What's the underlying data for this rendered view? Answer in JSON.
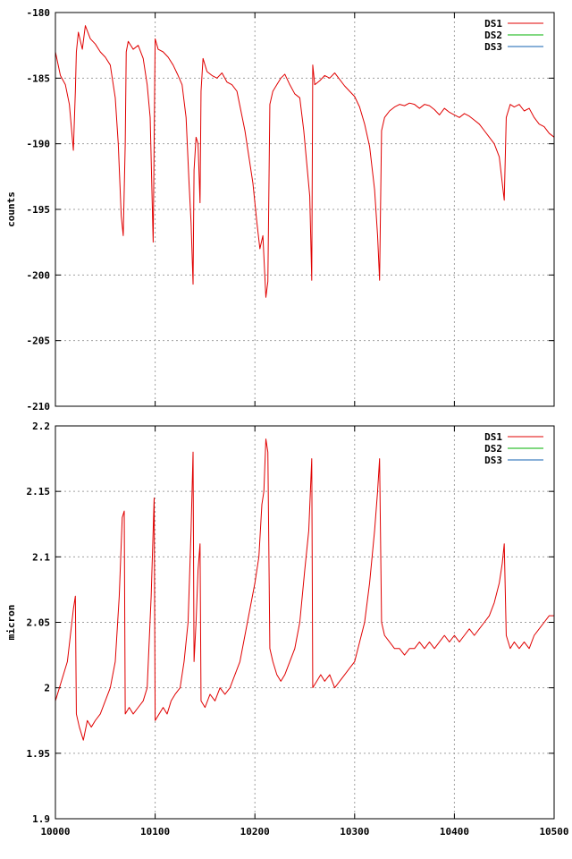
{
  "chart_data": [
    {
      "type": "line",
      "title": "",
      "xlabel": "",
      "ylabel": "counts",
      "xlim": [
        10000,
        10500
      ],
      "ylim": [
        -210,
        -180
      ],
      "xticks": [
        10000,
        10100,
        10200,
        10300,
        10400,
        10500
      ],
      "yticks": [
        -210,
        -205,
        -200,
        -195,
        -190,
        -185,
        -180
      ],
      "show_xtick_labels": false,
      "grid": true,
      "legend_position": "top-right",
      "series": [
        {
          "name": "DS1",
          "color": "#e00000",
          "points": [
            [
              10000,
              -183.0
            ],
            [
              10005,
              -184.8
            ],
            [
              10010,
              -185.5
            ],
            [
              10014,
              -187.0
            ],
            [
              10018,
              -190.5
            ],
            [
              10020,
              -186.0
            ],
            [
              10021,
              -183.0
            ],
            [
              10023,
              -181.5
            ],
            [
              10027,
              -182.8
            ],
            [
              10030,
              -181.0
            ],
            [
              10035,
              -182.0
            ],
            [
              10040,
              -182.4
            ],
            [
              10045,
              -183.0
            ],
            [
              10050,
              -183.4
            ],
            [
              10055,
              -184.0
            ],
            [
              10060,
              -186.5
            ],
            [
              10063,
              -190.0
            ],
            [
              10066,
              -195.5
            ],
            [
              10068,
              -197.0
            ],
            [
              10070,
              -190.0
            ],
            [
              10071,
              -183.0
            ],
            [
              10073,
              -182.2
            ],
            [
              10078,
              -182.8
            ],
            [
              10083,
              -182.5
            ],
            [
              10088,
              -183.5
            ],
            [
              10092,
              -185.5
            ],
            [
              10095,
              -188.0
            ],
            [
              10098,
              -197.5
            ],
            [
              10100,
              -182.0
            ],
            [
              10103,
              -182.8
            ],
            [
              10108,
              -183.0
            ],
            [
              10113,
              -183.4
            ],
            [
              10118,
              -184.0
            ],
            [
              10123,
              -184.8
            ],
            [
              10127,
              -185.5
            ],
            [
              10131,
              -188.0
            ],
            [
              10134,
              -193.0
            ],
            [
              10136,
              -196.0
            ],
            [
              10138,
              -200.7
            ],
            [
              10139,
              -192.0
            ],
            [
              10141,
              -189.5
            ],
            [
              10143,
              -190.0
            ],
            [
              10145,
              -194.5
            ],
            [
              10146,
              -186.0
            ],
            [
              10148,
              -183.5
            ],
            [
              10152,
              -184.5
            ],
            [
              10157,
              -184.8
            ],
            [
              10162,
              -185.0
            ],
            [
              10167,
              -184.6
            ],
            [
              10172,
              -185.3
            ],
            [
              10177,
              -185.5
            ],
            [
              10182,
              -186.0
            ],
            [
              10186,
              -187.5
            ],
            [
              10190,
              -189.0
            ],
            [
              10194,
              -191.0
            ],
            [
              10198,
              -193.0
            ],
            [
              10202,
              -196.0
            ],
            [
              10205,
              -198.0
            ],
            [
              10208,
              -197.0
            ],
            [
              10211,
              -201.7
            ],
            [
              10213,
              -200.5
            ],
            [
              10215,
              -187.0
            ],
            [
              10218,
              -186.0
            ],
            [
              10222,
              -185.5
            ],
            [
              10226,
              -185.0
            ],
            [
              10230,
              -184.7
            ],
            [
              10235,
              -185.5
            ],
            [
              10240,
              -186.2
            ],
            [
              10245,
              -186.5
            ],
            [
              10249,
              -189.0
            ],
            [
              10252,
              -191.5
            ],
            [
              10255,
              -194.0
            ],
            [
              10257,
              -200.4
            ],
            [
              10258,
              -184.0
            ],
            [
              10260,
              -185.5
            ],
            [
              10265,
              -185.2
            ],
            [
              10270,
              -184.8
            ],
            [
              10275,
              -185.0
            ],
            [
              10280,
              -184.6
            ],
            [
              10285,
              -185.1
            ],
            [
              10290,
              -185.6
            ],
            [
              10295,
              -186.0
            ],
            [
              10300,
              -186.4
            ],
            [
              10305,
              -187.2
            ],
            [
              10310,
              -188.5
            ],
            [
              10315,
              -190.2
            ],
            [
              10320,
              -193.5
            ],
            [
              10323,
              -197.0
            ],
            [
              10325,
              -200.4
            ],
            [
              10327,
              -189.0
            ],
            [
              10330,
              -188.0
            ],
            [
              10335,
              -187.5
            ],
            [
              10340,
              -187.2
            ],
            [
              10345,
              -187.0
            ],
            [
              10350,
              -187.1
            ],
            [
              10355,
              -186.9
            ],
            [
              10360,
              -187.0
            ],
            [
              10365,
              -187.3
            ],
            [
              10370,
              -187.0
            ],
            [
              10375,
              -187.1
            ],
            [
              10380,
              -187.4
            ],
            [
              10385,
              -187.8
            ],
            [
              10390,
              -187.3
            ],
            [
              10395,
              -187.6
            ],
            [
              10400,
              -187.8
            ],
            [
              10405,
              -188.0
            ],
            [
              10410,
              -187.7
            ],
            [
              10415,
              -187.9
            ],
            [
              10420,
              -188.2
            ],
            [
              10425,
              -188.5
            ],
            [
              10430,
              -189.0
            ],
            [
              10435,
              -189.5
            ],
            [
              10440,
              -190.0
            ],
            [
              10445,
              -191.0
            ],
            [
              10448,
              -193.0
            ],
            [
              10450,
              -194.3
            ],
            [
              10452,
              -188.0
            ],
            [
              10456,
              -187.0
            ],
            [
              10460,
              -187.2
            ],
            [
              10465,
              -187.0
            ],
            [
              10470,
              -187.5
            ],
            [
              10475,
              -187.3
            ],
            [
              10480,
              -188.0
            ],
            [
              10485,
              -188.5
            ],
            [
              10490,
              -188.7
            ],
            [
              10495,
              -189.2
            ],
            [
              10500,
              -189.5
            ]
          ]
        },
        {
          "name": "DS2",
          "color": "#00b000",
          "points": []
        },
        {
          "name": "DS3",
          "color": "#1060b0",
          "points": []
        }
      ]
    },
    {
      "type": "line",
      "title": "",
      "xlabel": "",
      "ylabel": "micron",
      "xlim": [
        10000,
        10500
      ],
      "ylim": [
        1.9,
        2.2
      ],
      "xticks": [
        10000,
        10100,
        10200,
        10300,
        10400,
        10500
      ],
      "yticks": [
        1.9,
        1.95,
        2.0,
        2.05,
        2.1,
        2.15,
        2.2
      ],
      "show_xtick_labels": true,
      "grid": true,
      "legend_position": "top-right",
      "series": [
        {
          "name": "DS1",
          "color": "#e00000",
          "points": [
            [
              10000,
              1.99
            ],
            [
              10004,
              2.0
            ],
            [
              10008,
              2.01
            ],
            [
              10012,
              2.02
            ],
            [
              10015,
              2.04
            ],
            [
              10018,
              2.06
            ],
            [
              10020,
              2.07
            ],
            [
              10021,
              1.98
            ],
            [
              10024,
              1.97
            ],
            [
              10028,
              1.96
            ],
            [
              10032,
              1.975
            ],
            [
              10036,
              1.97
            ],
            [
              10040,
              1.975
            ],
            [
              10045,
              1.98
            ],
            [
              10050,
              1.99
            ],
            [
              10055,
              2.0
            ],
            [
              10060,
              2.02
            ],
            [
              10064,
              2.07
            ],
            [
              10067,
              2.13
            ],
            [
              10069,
              2.135
            ],
            [
              10070,
              1.98
            ],
            [
              10074,
              1.985
            ],
            [
              10078,
              1.98
            ],
            [
              10083,
              1.985
            ],
            [
              10088,
              1.99
            ],
            [
              10092,
              2.0
            ],
            [
              10096,
              2.07
            ],
            [
              10099,
              2.145
            ],
            [
              10100,
              1.975
            ],
            [
              10104,
              1.98
            ],
            [
              10108,
              1.985
            ],
            [
              10112,
              1.98
            ],
            [
              10116,
              1.99
            ],
            [
              10120,
              1.995
            ],
            [
              10125,
              2.0
            ],
            [
              10129,
              2.02
            ],
            [
              10133,
              2.05
            ],
            [
              10136,
              2.12
            ],
            [
              10138,
              2.18
            ],
            [
              10139,
              2.02
            ],
            [
              10141,
              2.05
            ],
            [
              10143,
              2.09
            ],
            [
              10145,
              2.11
            ],
            [
              10146,
              1.99
            ],
            [
              10150,
              1.985
            ],
            [
              10155,
              1.995
            ],
            [
              10160,
              1.99
            ],
            [
              10165,
              2.0
            ],
            [
              10170,
              1.995
            ],
            [
              10175,
              2.0
            ],
            [
              10180,
              2.01
            ],
            [
              10185,
              2.02
            ],
            [
              10190,
              2.04
            ],
            [
              10195,
              2.06
            ],
            [
              10200,
              2.08
            ],
            [
              10204,
              2.1
            ],
            [
              10207,
              2.14
            ],
            [
              10209,
              2.15
            ],
            [
              10211,
              2.19
            ],
            [
              10213,
              2.18
            ],
            [
              10215,
              2.03
            ],
            [
              10218,
              2.02
            ],
            [
              10222,
              2.01
            ],
            [
              10226,
              2.005
            ],
            [
              10230,
              2.01
            ],
            [
              10235,
              2.02
            ],
            [
              10240,
              2.03
            ],
            [
              10245,
              2.05
            ],
            [
              10250,
              2.09
            ],
            [
              10254,
              2.12
            ],
            [
              10257,
              2.175
            ],
            [
              10258,
              2.0
            ],
            [
              10262,
              2.005
            ],
            [
              10266,
              2.01
            ],
            [
              10270,
              2.005
            ],
            [
              10275,
              2.01
            ],
            [
              10280,
              2.0
            ],
            [
              10285,
              2.005
            ],
            [
              10290,
              2.01
            ],
            [
              10295,
              2.015
            ],
            [
              10300,
              2.02
            ],
            [
              10305,
              2.035
            ],
            [
              10310,
              2.05
            ],
            [
              10315,
              2.08
            ],
            [
              10320,
              2.12
            ],
            [
              10323,
              2.15
            ],
            [
              10325,
              2.175
            ],
            [
              10327,
              2.05
            ],
            [
              10330,
              2.04
            ],
            [
              10335,
              2.035
            ],
            [
              10340,
              2.03
            ],
            [
              10345,
              2.03
            ],
            [
              10350,
              2.025
            ],
            [
              10355,
              2.03
            ],
            [
              10360,
              2.03
            ],
            [
              10365,
              2.035
            ],
            [
              10370,
              2.03
            ],
            [
              10375,
              2.035
            ],
            [
              10380,
              2.03
            ],
            [
              10385,
              2.035
            ],
            [
              10390,
              2.04
            ],
            [
              10395,
              2.035
            ],
            [
              10400,
              2.04
            ],
            [
              10405,
              2.035
            ],
            [
              10410,
              2.04
            ],
            [
              10415,
              2.045
            ],
            [
              10420,
              2.04
            ],
            [
              10425,
              2.045
            ],
            [
              10430,
              2.05
            ],
            [
              10435,
              2.055
            ],
            [
              10440,
              2.065
            ],
            [
              10445,
              2.08
            ],
            [
              10448,
              2.095
            ],
            [
              10450,
              2.11
            ],
            [
              10452,
              2.04
            ],
            [
              10456,
              2.03
            ],
            [
              10460,
              2.035
            ],
            [
              10465,
              2.03
            ],
            [
              10470,
              2.035
            ],
            [
              10475,
              2.03
            ],
            [
              10480,
              2.04
            ],
            [
              10485,
              2.045
            ],
            [
              10490,
              2.05
            ],
            [
              10495,
              2.055
            ],
            [
              10500,
              2.055
            ]
          ]
        },
        {
          "name": "DS2",
          "color": "#00b000",
          "points": []
        },
        {
          "name": "DS3",
          "color": "#1060b0",
          "points": []
        }
      ]
    }
  ]
}
